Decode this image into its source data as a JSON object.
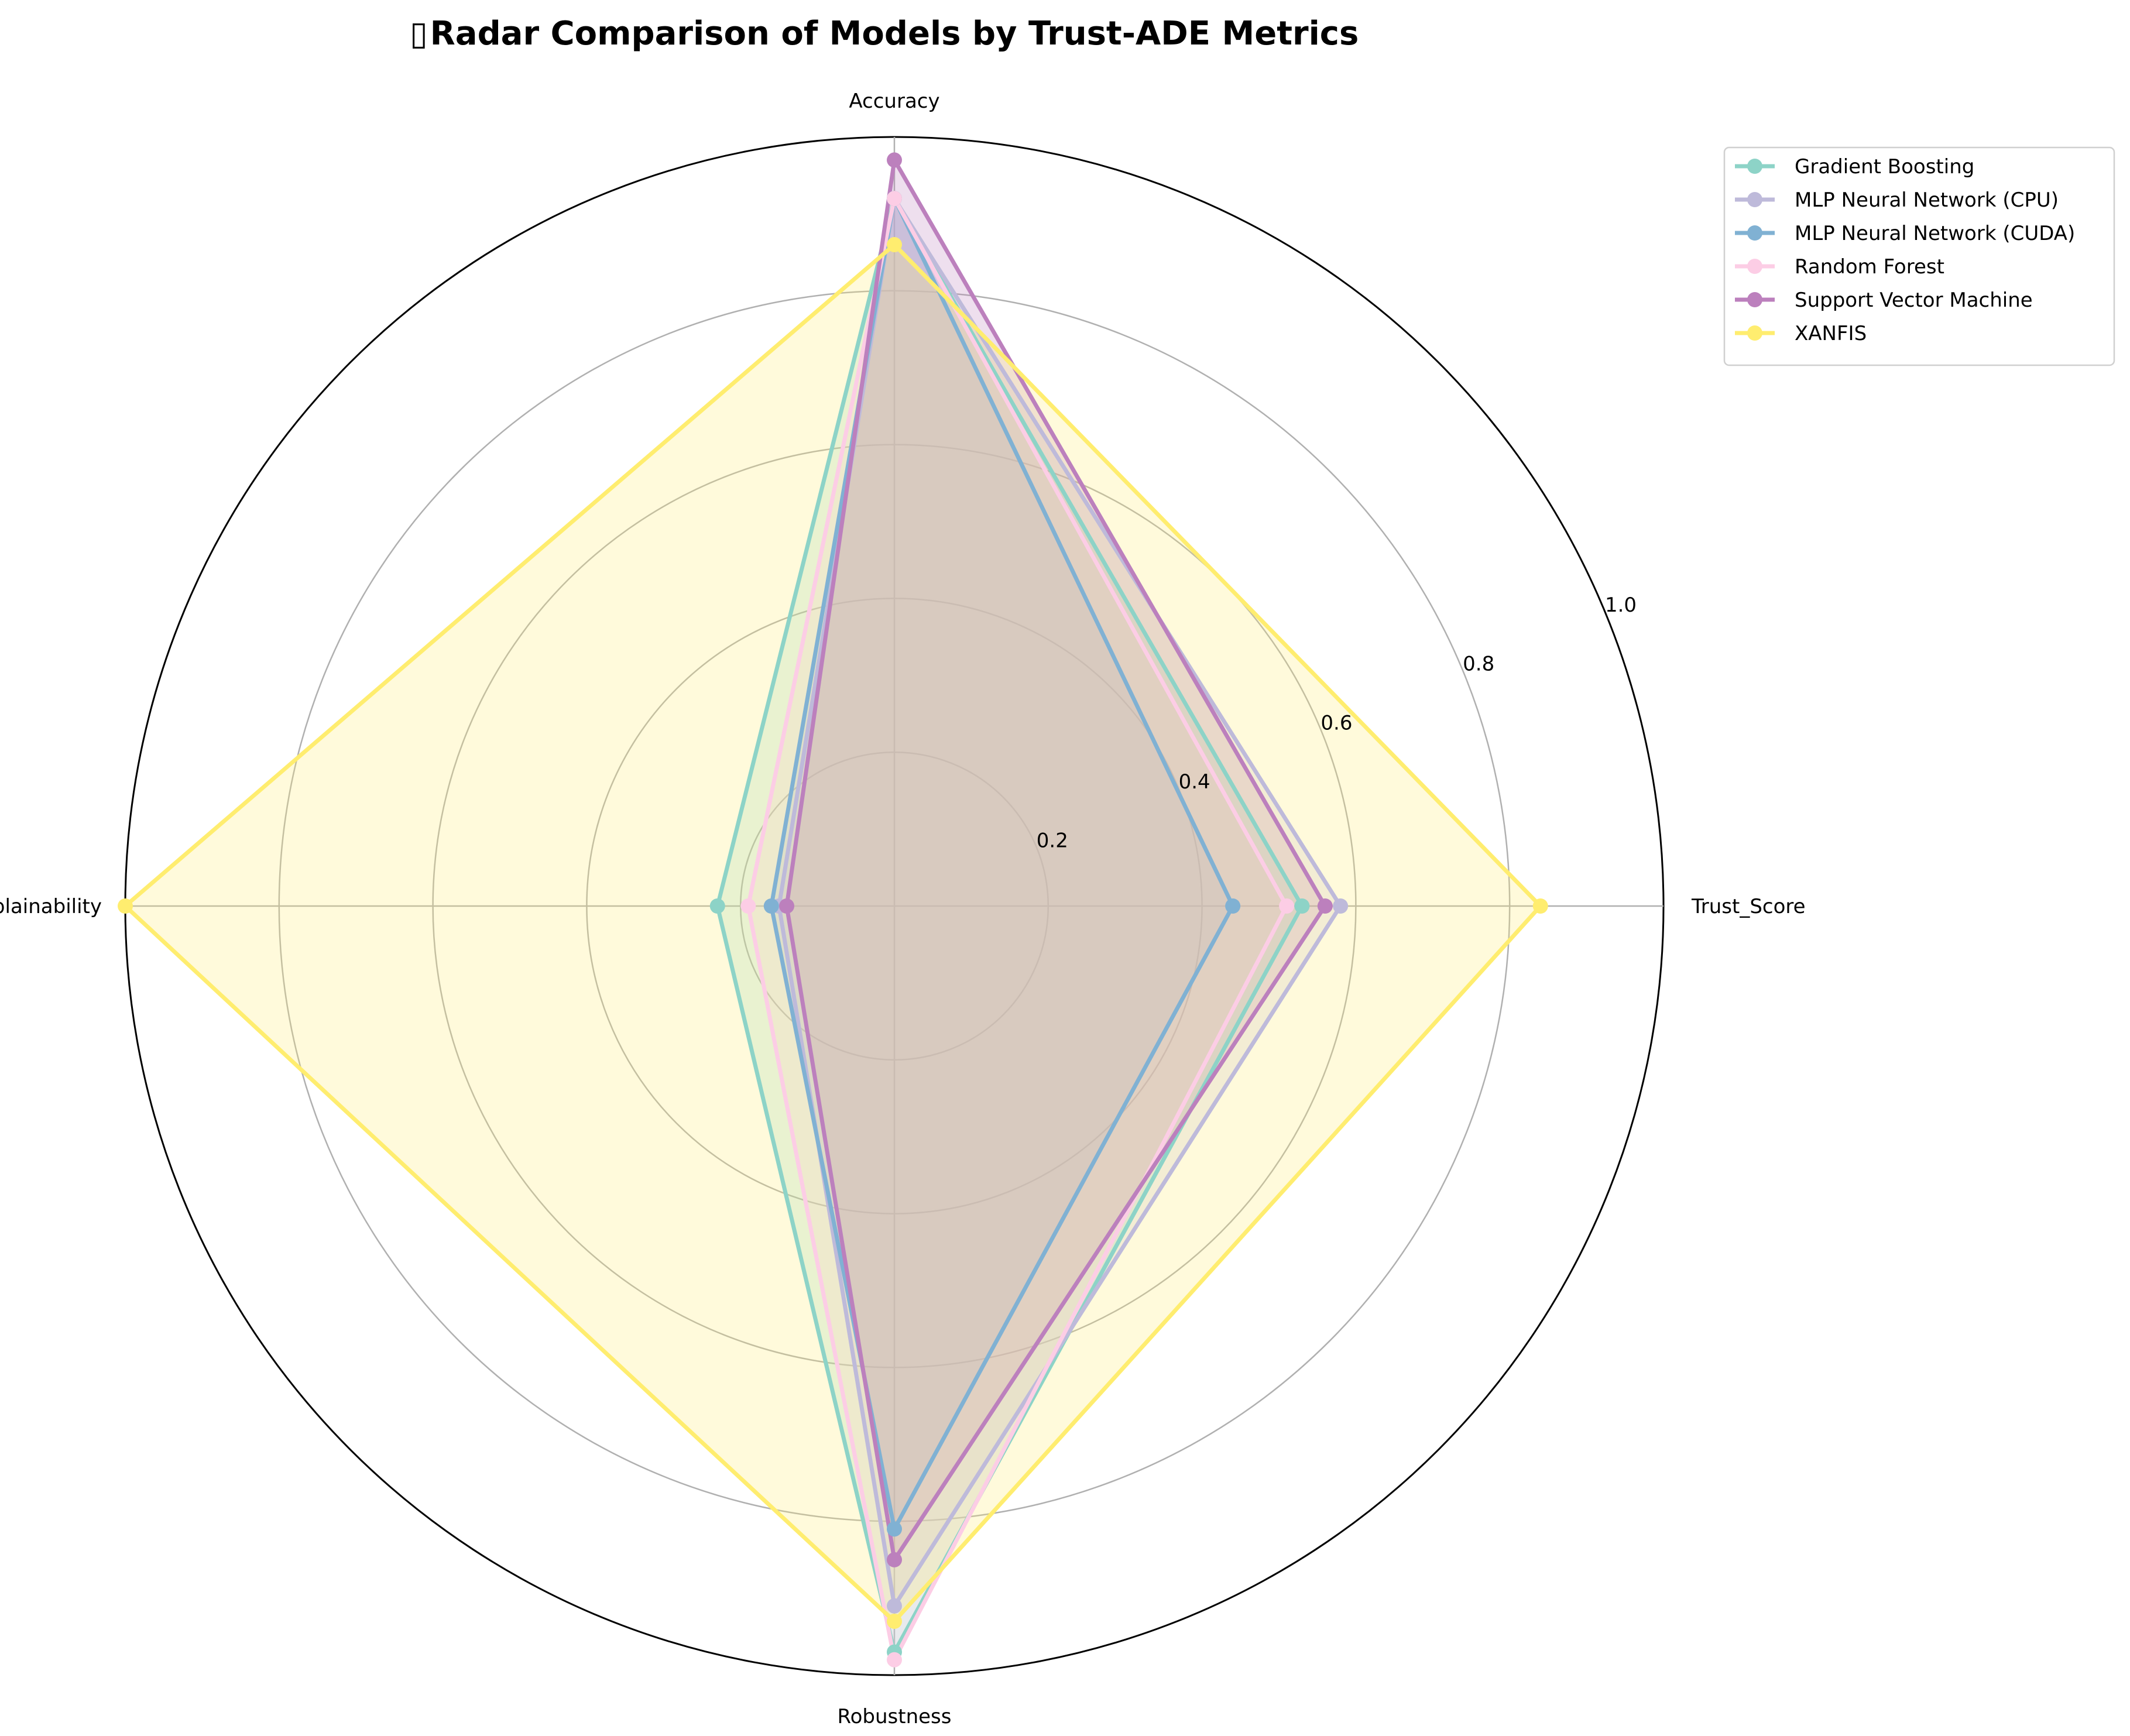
{
  "chart_data": {
    "type": "radar",
    "title": "Radar Comparison of Models by Trust-ADE Metrics",
    "title_icon": "chart-emoji-glyph",
    "axes": [
      "Accuracy",
      "Trust_Score",
      "Robustness",
      "Explainability"
    ],
    "radial_ticks": [
      "0.2",
      "0.4",
      "0.6",
      "0.8",
      "1.0"
    ],
    "rlim": [
      0,
      1.0
    ],
    "grid": true,
    "legend_placement": "upper-right-outside",
    "series": [
      {
        "name": "Gradient Boosting",
        "color": "#8dd3c7",
        "values": [
          0.92,
          0.53,
          0.97,
          0.23
        ]
      },
      {
        "name": "MLP Neural Network (CPU)",
        "color": "#bebada",
        "values": [
          0.92,
          0.58,
          0.91,
          0.15
        ]
      },
      {
        "name": "MLP Neural Network (CUDA)",
        "color": "#80b1d3",
        "values": [
          0.92,
          0.44,
          0.81,
          0.16
        ]
      },
      {
        "name": "Random Forest",
        "color": "#fccde5",
        "values": [
          0.92,
          0.51,
          0.98,
          0.19
        ]
      },
      {
        "name": "Support Vector Machine",
        "color": "#bc80bd",
        "values": [
          0.97,
          0.56,
          0.85,
          0.14
        ]
      },
      {
        "name": "XANFIS",
        "color": "#ffed6f",
        "values": [
          0.86,
          0.84,
          0.93,
          1.0
        ]
      }
    ]
  }
}
